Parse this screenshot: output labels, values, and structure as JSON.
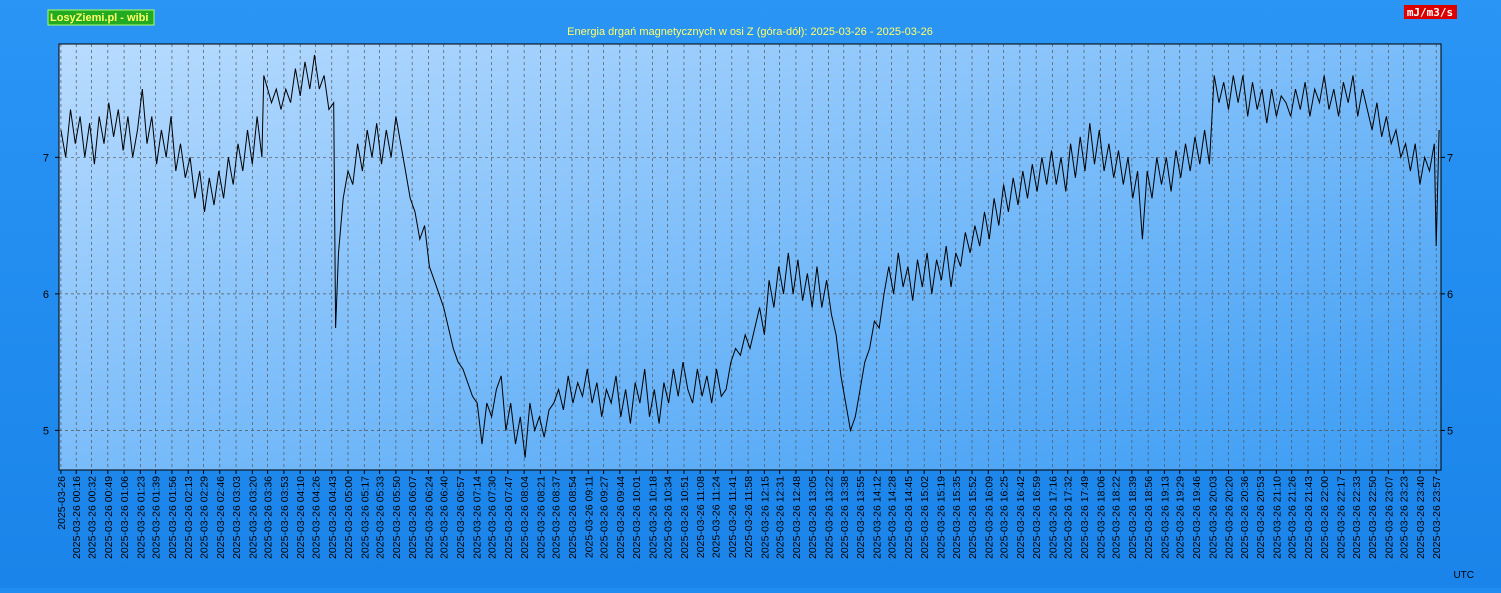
{
  "chart_data": {
    "type": "line",
    "brand": "LosyZiemi.pl - wibi",
    "unit_label": "mJ/m3/s",
    "title": "Energia drgań magnetycznych w osi Z (góra-dół): 2025-03-26 - 2025-03-26",
    "x_label": "UTC",
    "color": "#000000",
    "grid": true,
    "xlim": [
      -2,
      1442
    ],
    "ylim": [
      4.71,
      7.83
    ],
    "yticks": [
      5,
      6,
      7
    ],
    "xticks": [
      {
        "value": 0,
        "label": "2025-03-26"
      },
      {
        "value": 16,
        "label": "2025-03-26 00:16"
      },
      {
        "value": 32,
        "label": "2025-03-26 00:32"
      },
      {
        "value": 49,
        "label": "2025-03-26 00:49"
      },
      {
        "value": 66,
        "label": "2025-03-26 01:06"
      },
      {
        "value": 83,
        "label": "2025-03-26 01:23"
      },
      {
        "value": 99,
        "label": "2025-03-26 01:39"
      },
      {
        "value": 116,
        "label": "2025-03-26 01:56"
      },
      {
        "value": 133,
        "label": "2025-03-26 02:13"
      },
      {
        "value": 149,
        "label": "2025-03-26 02:29"
      },
      {
        "value": 166,
        "label": "2025-03-26 02:46"
      },
      {
        "value": 183,
        "label": "2025-03-26 03:03"
      },
      {
        "value": 200,
        "label": "2025-03-26 03:20"
      },
      {
        "value": 216,
        "label": "2025-03-26 03:36"
      },
      {
        "value": 233,
        "label": "2025-03-26 03:53"
      },
      {
        "value": 250,
        "label": "2025-03-26 04:10"
      },
      {
        "value": 266,
        "label": "2025-03-26 04:26"
      },
      {
        "value": 283,
        "label": "2025-03-26 04:43"
      },
      {
        "value": 300,
        "label": "2025-03-26 05:00"
      },
      {
        "value": 317,
        "label": "2025-03-26 05:17"
      },
      {
        "value": 333,
        "label": "2025-03-26 05:33"
      },
      {
        "value": 350,
        "label": "2025-03-26 05:50"
      },
      {
        "value": 367,
        "label": "2025-03-26 06:07"
      },
      {
        "value": 384,
        "label": "2025-03-26 06:24"
      },
      {
        "value": 400,
        "label": "2025-03-26 06:40"
      },
      {
        "value": 417,
        "label": "2025-03-26 06:57"
      },
      {
        "value": 434,
        "label": "2025-03-26 07:14"
      },
      {
        "value": 450,
        "label": "2025-03-26 07:30"
      },
      {
        "value": 467,
        "label": "2025-03-26 07:47"
      },
      {
        "value": 484,
        "label": "2025-03-26 08:04"
      },
      {
        "value": 501,
        "label": "2025-03-26 08:21"
      },
      {
        "value": 517,
        "label": "2025-03-26 08:37"
      },
      {
        "value": 534,
        "label": "2025-03-26 08:54"
      },
      {
        "value": 551,
        "label": "2025-03-26 09:11"
      },
      {
        "value": 567,
        "label": "2025-03-26 09:27"
      },
      {
        "value": 584,
        "label": "2025-03-26 09:44"
      },
      {
        "value": 601,
        "label": "2025-03-26 10:01"
      },
      {
        "value": 618,
        "label": "2025-03-26 10:18"
      },
      {
        "value": 634,
        "label": "2025-03-26 10:34"
      },
      {
        "value": 651,
        "label": "2025-03-26 10:51"
      },
      {
        "value": 668,
        "label": "2025-03-26 11:08"
      },
      {
        "value": 684,
        "label": "2025-03-26 11:24"
      },
      {
        "value": 701,
        "label": "2025-03-26 11:41"
      },
      {
        "value": 718,
        "label": "2025-03-26 11:58"
      },
      {
        "value": 735,
        "label": "2025-03-26 12:15"
      },
      {
        "value": 751,
        "label": "2025-03-26 12:31"
      },
      {
        "value": 768,
        "label": "2025-03-26 12:48"
      },
      {
        "value": 785,
        "label": "2025-03-26 13:05"
      },
      {
        "value": 802,
        "label": "2025-03-26 13:22"
      },
      {
        "value": 818,
        "label": "2025-03-26 13:38"
      },
      {
        "value": 835,
        "label": "2025-03-26 13:55"
      },
      {
        "value": 852,
        "label": "2025-03-26 14:12"
      },
      {
        "value": 868,
        "label": "2025-03-26 14:28"
      },
      {
        "value": 885,
        "label": "2025-03-26 14:45"
      },
      {
        "value": 902,
        "label": "2025-03-26 15:02"
      },
      {
        "value": 919,
        "label": "2025-03-26 15:19"
      },
      {
        "value": 935,
        "label": "2025-03-26 15:35"
      },
      {
        "value": 952,
        "label": "2025-03-26 15:52"
      },
      {
        "value": 969,
        "label": "2025-03-26 16:09"
      },
      {
        "value": 985,
        "label": "2025-03-26 16:25"
      },
      {
        "value": 1002,
        "label": "2025-03-26 16:42"
      },
      {
        "value": 1019,
        "label": "2025-03-26 16:59"
      },
      {
        "value": 1036,
        "label": "2025-03-26 17:16"
      },
      {
        "value": 1052,
        "label": "2025-03-26 17:32"
      },
      {
        "value": 1069,
        "label": "2025-03-26 17:49"
      },
      {
        "value": 1086,
        "label": "2025-03-26 18:06"
      },
      {
        "value": 1102,
        "label": "2025-03-26 18:22"
      },
      {
        "value": 1119,
        "label": "2025-03-26 18:39"
      },
      {
        "value": 1136,
        "label": "2025-03-26 18:56"
      },
      {
        "value": 1153,
        "label": "2025-03-26 19:13"
      },
      {
        "value": 1169,
        "label": "2025-03-26 19:29"
      },
      {
        "value": 1186,
        "label": "2025-03-26 19:46"
      },
      {
        "value": 1203,
        "label": "2025-03-26 20:03"
      },
      {
        "value": 1220,
        "label": "2025-03-26 20:20"
      },
      {
        "value": 1236,
        "label": "2025-03-26 20:36"
      },
      {
        "value": 1253,
        "label": "2025-03-26 20:53"
      },
      {
        "value": 1270,
        "label": "2025-03-26 21:10"
      },
      {
        "value": 1286,
        "label": "2025-03-26 21:26"
      },
      {
        "value": 1303,
        "label": "2025-03-26 21:43"
      },
      {
        "value": 1320,
        "label": "2025-03-26 22:00"
      },
      {
        "value": 1337,
        "label": "2025-03-26 22:17"
      },
      {
        "value": 1353,
        "label": "2025-03-26 22:33"
      },
      {
        "value": 1370,
        "label": "2025-03-26 22:50"
      },
      {
        "value": 1387,
        "label": "2025-03-26 23:07"
      },
      {
        "value": 1403,
        "label": "2025-03-26 23:23"
      },
      {
        "value": 1420,
        "label": "2025-03-26 23:40"
      },
      {
        "value": 1437,
        "label": "2025-03-26 23:57"
      }
    ],
    "x": [
      0,
      5,
      10,
      15,
      20,
      25,
      30,
      35,
      40,
      45,
      50,
      55,
      60,
      65,
      70,
      75,
      80,
      85,
      90,
      95,
      100,
      105,
      110,
      115,
      120,
      125,
      130,
      135,
      140,
      145,
      150,
      155,
      160,
      165,
      170,
      175,
      180,
      185,
      190,
      195,
      200,
      205,
      210,
      212,
      220,
      225,
      230,
      235,
      240,
      245,
      250,
      255,
      260,
      265,
      270,
      275,
      280,
      285,
      287,
      290,
      295,
      300,
      305,
      310,
      315,
      320,
      325,
      330,
      335,
      340,
      345,
      350,
      355,
      360,
      365,
      370,
      375,
      380,
      385,
      390,
      395,
      400,
      405,
      410,
      415,
      420,
      425,
      430,
      435,
      440,
      445,
      450,
      455,
      460,
      465,
      470,
      475,
      480,
      485,
      490,
      495,
      500,
      505,
      510,
      515,
      520,
      525,
      530,
      535,
      540,
      545,
      550,
      555,
      560,
      565,
      570,
      575,
      580,
      585,
      590,
      595,
      600,
      605,
      610,
      615,
      620,
      625,
      630,
      635,
      640,
      645,
      650,
      655,
      660,
      665,
      670,
      675,
      680,
      685,
      690,
      695,
      700,
      705,
      710,
      715,
      720,
      725,
      730,
      735,
      740,
      745,
      750,
      755,
      760,
      765,
      770,
      775,
      780,
      785,
      790,
      795,
      800,
      805,
      810,
      815,
      820,
      825,
      830,
      835,
      840,
      845,
      850,
      855,
      860,
      865,
      870,
      875,
      880,
      885,
      890,
      895,
      900,
      905,
      910,
      915,
      920,
      925,
      930,
      935,
      940,
      945,
      950,
      955,
      960,
      965,
      970,
      975,
      980,
      985,
      990,
      995,
      1000,
      1005,
      1010,
      1015,
      1020,
      1025,
      1030,
      1035,
      1040,
      1045,
      1050,
      1055,
      1060,
      1065,
      1070,
      1075,
      1080,
      1085,
      1090,
      1095,
      1100,
      1105,
      1110,
      1115,
      1120,
      1125,
      1130,
      1135,
      1140,
      1145,
      1150,
      1155,
      1160,
      1165,
      1170,
      1175,
      1180,
      1185,
      1190,
      1195,
      1200,
      1205,
      1210,
      1215,
      1220,
      1225,
      1230,
      1235,
      1240,
      1245,
      1250,
      1255,
      1260,
      1265,
      1270,
      1275,
      1280,
      1285,
      1290,
      1295,
      1300,
      1305,
      1310,
      1315,
      1320,
      1325,
      1330,
      1335,
      1340,
      1345,
      1350,
      1355,
      1360,
      1365,
      1370,
      1375,
      1380,
      1385,
      1390,
      1395,
      1400,
      1405,
      1410,
      1415,
      1420,
      1425,
      1430,
      1435,
      1437,
      1440
    ],
    "values": [
      7.2,
      7.0,
      7.35,
      7.1,
      7.3,
      7.0,
      7.25,
      6.95,
      7.3,
      7.1,
      7.4,
      7.15,
      7.35,
      7.05,
      7.3,
      7.0,
      7.2,
      7.5,
      7.1,
      7.3,
      6.95,
      7.2,
      7.0,
      7.3,
      6.9,
      7.1,
      6.85,
      7.0,
      6.7,
      6.9,
      6.6,
      6.85,
      6.65,
      6.9,
      6.7,
      7.0,
      6.8,
      7.1,
      6.9,
      7.2,
      6.95,
      7.3,
      7.0,
      7.6,
      7.4,
      7.5,
      7.35,
      7.5,
      7.4,
      7.65,
      7.45,
      7.7,
      7.5,
      7.75,
      7.5,
      7.6,
      7.35,
      7.4,
      5.75,
      6.3,
      6.7,
      6.9,
      6.8,
      7.1,
      6.9,
      7.2,
      7.0,
      7.25,
      6.95,
      7.2,
      7.0,
      7.3,
      7.1,
      6.9,
      6.7,
      6.6,
      6.4,
      6.5,
      6.2,
      6.1,
      6.0,
      5.9,
      5.75,
      5.6,
      5.5,
      5.45,
      5.35,
      5.25,
      5.2,
      4.9,
      5.2,
      5.1,
      5.3,
      5.4,
      5.0,
      5.2,
      4.9,
      5.1,
      4.8,
      5.2,
      5.0,
      5.1,
      4.95,
      5.15,
      5.2,
      5.3,
      5.15,
      5.4,
      5.2,
      5.35,
      5.25,
      5.45,
      5.2,
      5.35,
      5.1,
      5.3,
      5.2,
      5.4,
      5.1,
      5.3,
      5.05,
      5.35,
      5.2,
      5.45,
      5.1,
      5.3,
      5.05,
      5.35,
      5.2,
      5.45,
      5.25,
      5.5,
      5.3,
      5.2,
      5.45,
      5.25,
      5.4,
      5.2,
      5.45,
      5.25,
      5.3,
      5.5,
      5.6,
      5.55,
      5.7,
      5.6,
      5.75,
      5.9,
      5.7,
      6.1,
      5.9,
      6.2,
      6.0,
      6.3,
      6.0,
      6.25,
      5.95,
      6.15,
      5.9,
      6.2,
      5.9,
      6.1,
      5.85,
      5.7,
      5.4,
      5.2,
      5.0,
      5.1,
      5.3,
      5.5,
      5.6,
      5.8,
      5.75,
      6.0,
      6.2,
      6.0,
      6.3,
      6.05,
      6.2,
      5.95,
      6.25,
      6.05,
      6.3,
      6.0,
      6.25,
      6.1,
      6.35,
      6.05,
      6.3,
      6.2,
      6.45,
      6.3,
      6.5,
      6.35,
      6.6,
      6.4,
      6.7,
      6.5,
      6.8,
      6.6,
      6.85,
      6.65,
      6.9,
      6.7,
      6.95,
      6.75,
      7.0,
      6.8,
      7.05,
      6.8,
      7.0,
      6.75,
      7.1,
      6.85,
      7.15,
      6.9,
      7.25,
      6.95,
      7.2,
      6.9,
      7.1,
      6.85,
      7.05,
      6.8,
      7.0,
      6.7,
      6.9,
      6.4,
      6.9,
      6.7,
      7.0,
      6.8,
      7.0,
      6.75,
      7.05,
      6.85,
      7.1,
      6.9,
      7.15,
      6.95,
      7.2,
      6.95,
      7.6,
      7.4,
      7.55,
      7.35,
      7.6,
      7.4,
      7.6,
      7.3,
      7.55,
      7.35,
      7.5,
      7.25,
      7.5,
      7.3,
      7.45,
      7.4,
      7.3,
      7.5,
      7.35,
      7.55,
      7.3,
      7.5,
      7.4,
      7.6,
      7.35,
      7.5,
      7.3,
      7.55,
      7.4,
      7.6,
      7.3,
      7.5,
      7.35,
      7.2,
      7.4,
      7.15,
      7.3,
      7.1,
      7.2,
      7.0,
      7.1,
      6.9,
      7.1,
      6.8,
      7.0,
      6.9,
      7.1,
      6.35,
      7.2
    ]
  }
}
